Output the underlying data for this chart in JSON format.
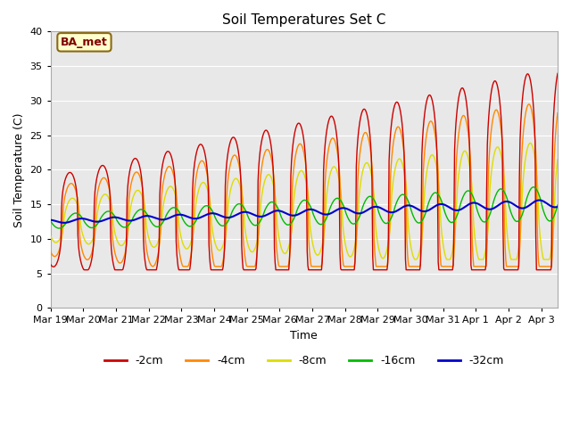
{
  "title": "Soil Temperatures Set C",
  "xlabel": "Time",
  "ylabel": "Soil Temperature (C)",
  "ylim": [
    0,
    40
  ],
  "yticks": [
    0,
    5,
    10,
    15,
    20,
    25,
    30,
    35,
    40
  ],
  "annotation_text": "BA_met",
  "background_color": "#e8e8e8",
  "colors": {
    "-2cm": "#cc0000",
    "-4cm": "#ff8800",
    "-8cm": "#dddd00",
    "-16cm": "#00bb00",
    "-32cm": "#0000cc"
  },
  "date_labels": [
    "Mar 19",
    "Mar 20",
    "Mar 21",
    "Mar 22",
    "Mar 23",
    "Mar 24",
    "Mar 25",
    "Mar 26",
    "Mar 27",
    "Mar 28",
    "Mar 29",
    "Mar 30",
    "Mar 31",
    "Apr 1",
    "Apr 2",
    "Apr 3"
  ],
  "num_days": 15.5,
  "points_per_day": 48,
  "linewidth": 1.0
}
